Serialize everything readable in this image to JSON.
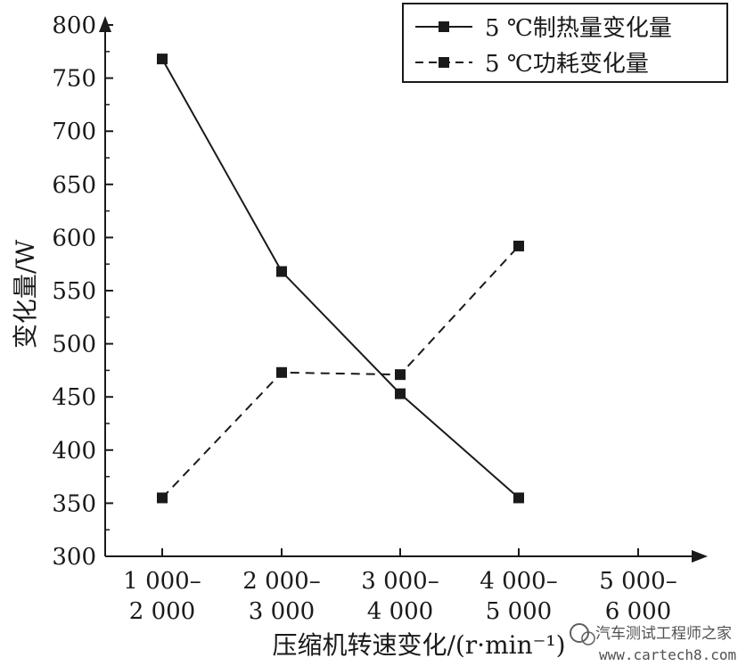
{
  "chart_data": {
    "type": "line",
    "title": "",
    "ylabel": "变化量/W",
    "xlabel": "压缩机转速变化/(r·min⁻¹)",
    "ylim": [
      300,
      800
    ],
    "yticks": [
      300,
      350,
      400,
      450,
      500,
      550,
      600,
      650,
      700,
      750,
      800
    ],
    "categories": [
      [
        "1 000–",
        "2 000"
      ],
      [
        "2 000–",
        "3 000"
      ],
      [
        "3 000–",
        "4 000"
      ],
      [
        "4 000–",
        "5 000"
      ],
      [
        "5 000–",
        "6 000"
      ]
    ],
    "series": [
      {
        "name": "5 ℃制热量变化量",
        "style": "solid",
        "values": [
          768,
          568,
          453,
          355,
          null
        ]
      },
      {
        "name": "5 ℃功耗变化量",
        "style": "dashed",
        "values": [
          355,
          473,
          471,
          592,
          null
        ]
      }
    ],
    "legend": "top-right",
    "grid": false,
    "line_color": "#1a1a1a"
  },
  "watermark": {
    "brand": "汽车测试工程师之家",
    "url": "www.cartech8.com"
  }
}
